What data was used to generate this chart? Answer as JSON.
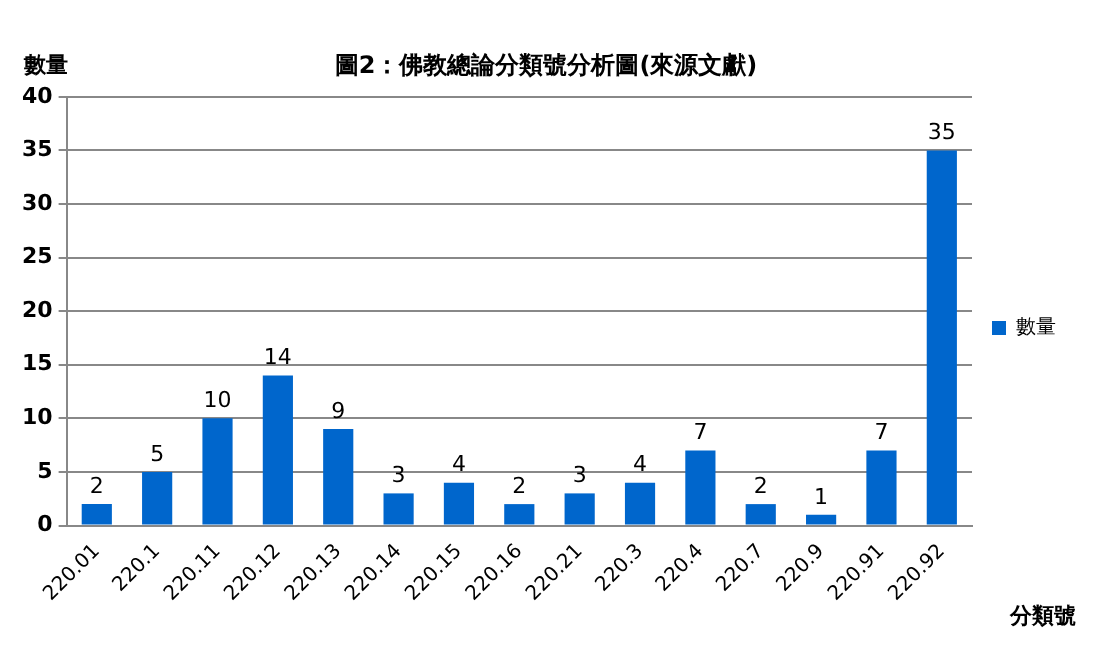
{
  "chart_data": {
    "type": "bar",
    "title": "圖2：佛教總論分類號分析圖(來源文獻)",
    "ylabel": "數量",
    "xlabel": "分類號",
    "categories": [
      "220.01",
      "220.1",
      "220.11",
      "220.12",
      "220.13",
      "220.14",
      "220.15",
      "220.16",
      "220.21",
      "220.3",
      "220.4",
      "220.7",
      "220.9",
      "220.91",
      "220.92"
    ],
    "series": [
      {
        "name": "數量",
        "color": "#0066cc",
        "values": [
          2,
          5,
          10,
          14,
          9,
          3,
          4,
          2,
          3,
          4,
          7,
          2,
          1,
          7,
          35
        ]
      }
    ],
    "ylim": [
      0,
      40
    ],
    "yticks": [
      0,
      5,
      10,
      15,
      20,
      25,
      30,
      35,
      40
    ],
    "grid": "y",
    "legend": "right",
    "data_labels": true
  }
}
